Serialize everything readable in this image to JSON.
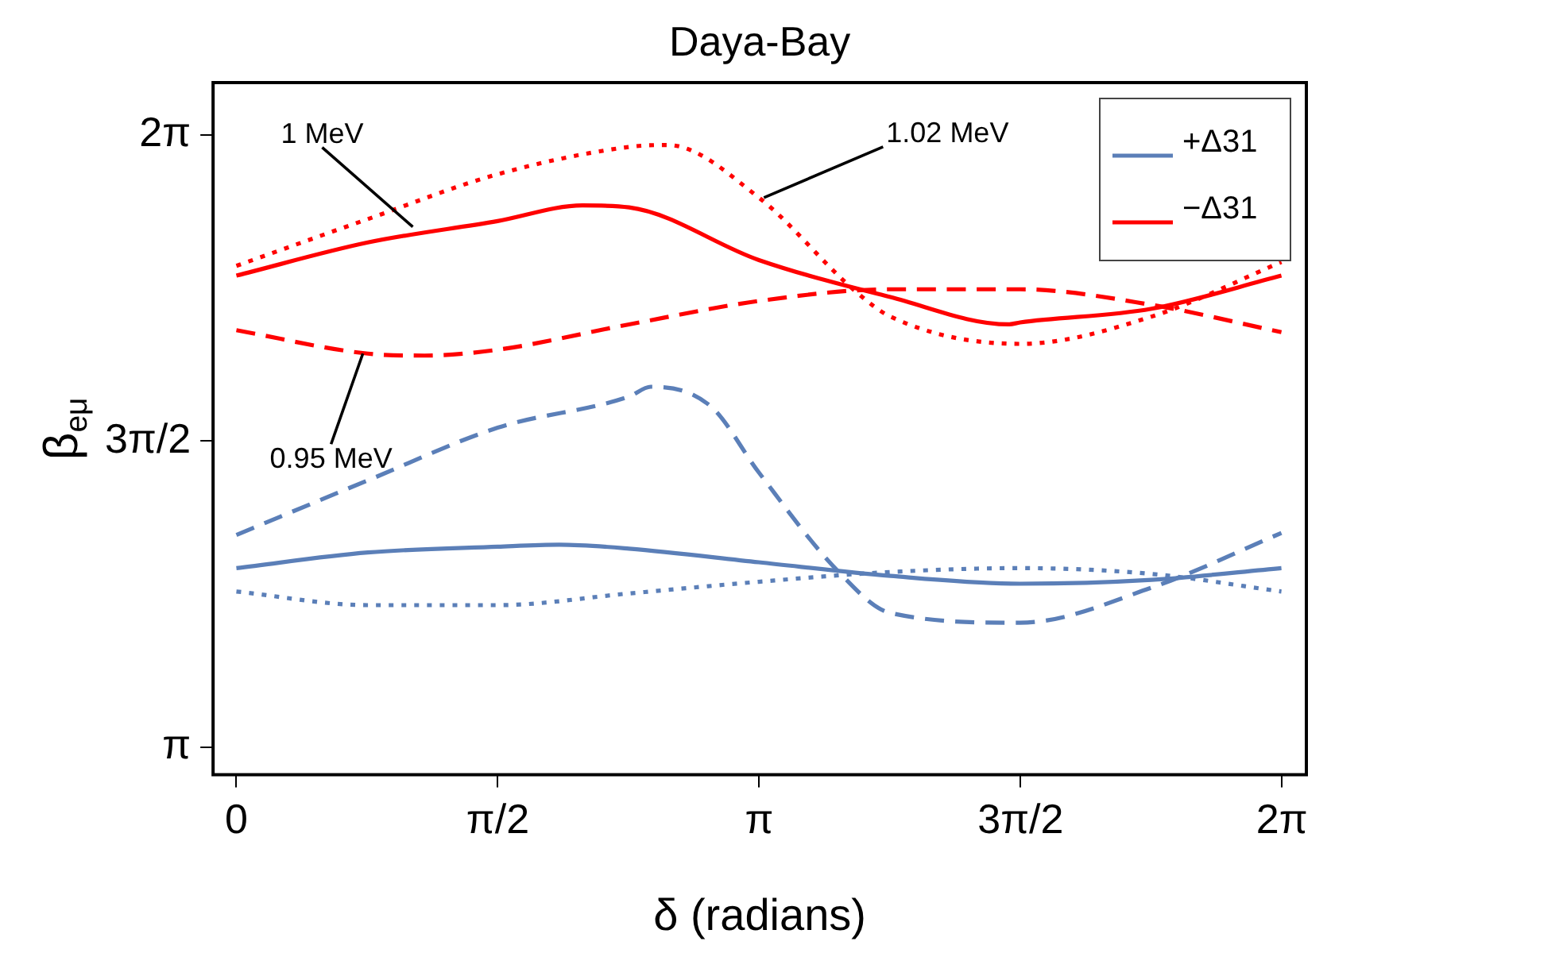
{
  "chart_data": {
    "type": "line",
    "title": "Daya-Bay",
    "xlabel": "δ (radians)",
    "ylabel": "β$_{eμ}$",
    "xlim": [
      -0.14,
      6.43
    ],
    "ylim": [
      3.0,
      6.55
    ],
    "xticks": [
      0,
      {
        "value": 1.5708,
        "label": "π/2"
      },
      {
        "value": 3.1416,
        "label": "π"
      },
      {
        "value": 4.7124,
        "label": "3π/2"
      },
      {
        "value": 6.2832,
        "label": "2π"
      }
    ],
    "yticks": [
      {
        "value": 3.1416,
        "label": "π"
      },
      {
        "value": 4.7124,
        "label": "3π/2"
      },
      {
        "value": 6.2832,
        "label": "2π"
      }
    ],
    "grid": false,
    "legend": "top right",
    "marker": "none",
    "series": [
      {
        "name": "+Δ31",
        "color": "#5b7fb8",
        "line_style": "solid",
        "x": [
          0,
          0.79,
          1.57,
          1.94,
          2.36,
          3.14,
          3.93,
          4.71,
          5.5,
          6.28
        ],
        "values": [
          4.06,
          4.14,
          4.17,
          4.18,
          4.16,
          4.09,
          4.02,
          3.98,
          4.0,
          4.06
        ]
      },
      {
        "color": "#5b7fb8",
        "line_style": "dotted",
        "x": [
          0,
          0.79,
          1.22,
          1.57,
          2.36,
          3.14,
          3.93,
          4.71,
          5.5,
          6.28
        ],
        "values": [
          3.94,
          3.87,
          3.87,
          3.87,
          3.93,
          3.99,
          4.04,
          4.06,
          4.03,
          3.94
        ]
      },
      {
        "color": "#5b7fb8",
        "line_style": "dashed",
        "x": [
          0,
          0.79,
          1.57,
          2.36,
          2.49,
          2.85,
          3.14,
          3.62,
          3.93,
          4.71,
          5.5,
          6.28
        ],
        "values": [
          4.23,
          4.51,
          4.78,
          4.94,
          4.99,
          4.89,
          4.55,
          4.04,
          3.83,
          3.78,
          3.96,
          4.24
        ]
      },
      {
        "name": "−Δ31",
        "color": "#ff0000",
        "line_style": "solid",
        "x": [
          0,
          0.79,
          1.57,
          2.08,
          2.36,
          3.14,
          3.93,
          4.64,
          4.71,
          5.5,
          6.28
        ],
        "values": [
          5.56,
          5.73,
          5.84,
          5.92,
          5.91,
          5.64,
          5.45,
          5.31,
          5.32,
          5.39,
          5.56
        ]
      },
      {
        "color": "#ff0000",
        "line_style": "dotted",
        "x": [
          0,
          0.79,
          1.57,
          2.36,
          2.59,
          3.14,
          3.72,
          3.93,
          4.71,
          5.5,
          6.28
        ],
        "values": [
          5.61,
          5.85,
          6.08,
          6.22,
          6.23,
          5.96,
          5.48,
          5.35,
          5.21,
          5.35,
          5.63
        ]
      },
      {
        "color": "#ff0000",
        "line_style": "dashed",
        "x": [
          0,
          0.79,
          1.13,
          1.57,
          2.36,
          3.14,
          3.93,
          4.71,
          5.5,
          6.28
        ],
        "values": [
          5.28,
          5.16,
          5.15,
          5.18,
          5.31,
          5.43,
          5.49,
          5.49,
          5.41,
          5.27
        ]
      }
    ],
    "annotations": [
      {
        "text": "1 MeV",
        "x": 1.06,
        "y": 5.81
      },
      {
        "text": "1.02 MeV",
        "x": 3.17,
        "y": 5.96
      },
      {
        "text": "0.95 MeV",
        "x": 0.76,
        "y": 5.16
      }
    ]
  }
}
